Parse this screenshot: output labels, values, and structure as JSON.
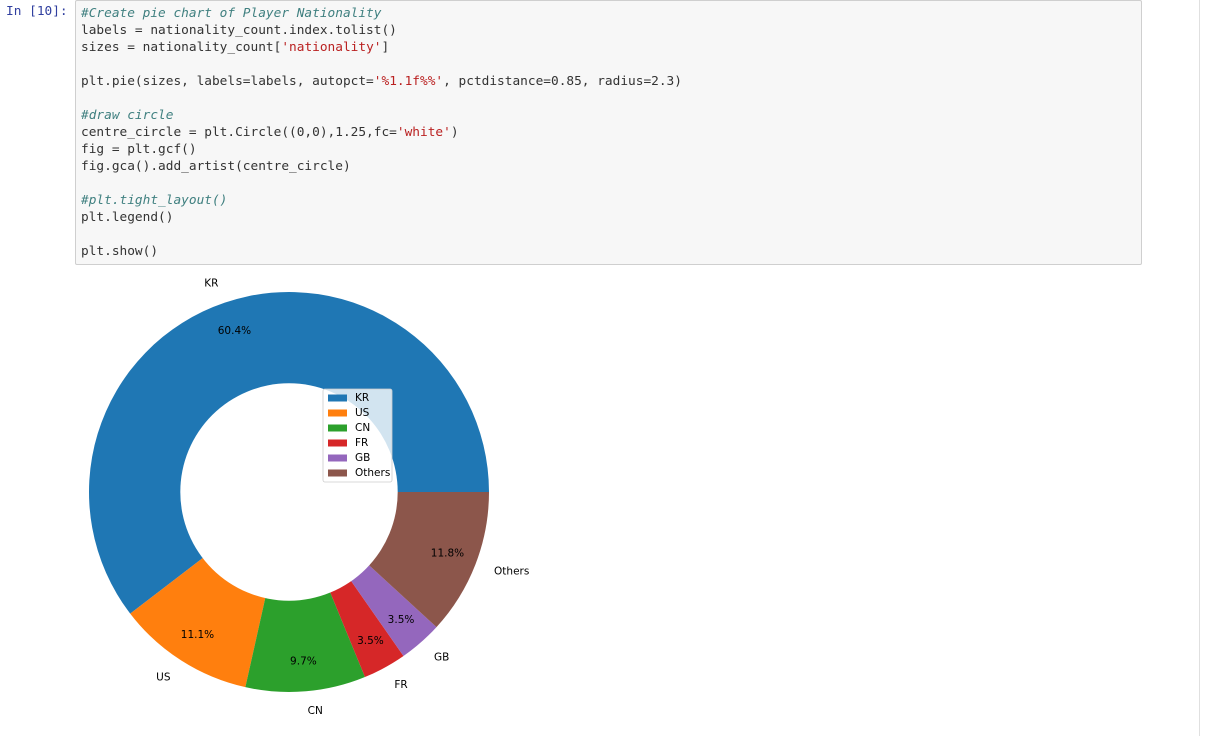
{
  "prompt": "In [10]:",
  "code": {
    "lines": [
      [
        "#Create pie chart of Player Nationality"
      ],
      [
        "labels = nationality_count.index.tolist()"
      ],
      [
        "sizes = nationality_count[",
        "'nationality'",
        "]"
      ],
      [],
      [
        "plt.pie(sizes, labels=labels, autopct=",
        "'%1.1f%%'",
        ", pctdistance=0.85, radius=2.3)"
      ],
      [],
      [
        "#draw circle"
      ],
      [
        "centre_circle = plt.Circle((0,0),1.25,fc=",
        "'white'",
        ")"
      ],
      [
        "fig = plt.gcf()"
      ],
      [
        "fig.gca().add_artist(centre_circle)"
      ],
      [],
      [
        "#plt.tight_layout()"
      ],
      [
        "plt.legend()"
      ],
      [],
      [
        "plt.show()"
      ]
    ]
  },
  "chart_data": {
    "type": "pie",
    "categories": [
      "KR",
      "US",
      "CN",
      "FR",
      "GB",
      "Others"
    ],
    "values": [
      60.4,
      11.1,
      9.7,
      3.5,
      3.5,
      11.8
    ],
    "value_labels": [
      "60.4%",
      "11.1%",
      "9.7%",
      "3.5%",
      "3.5%",
      "11.8%"
    ],
    "colors": [
      "#1f77b4",
      "#ff7f0e",
      "#2ca02c",
      "#d62728",
      "#9467bd",
      "#8c564b"
    ],
    "legend": true
  }
}
